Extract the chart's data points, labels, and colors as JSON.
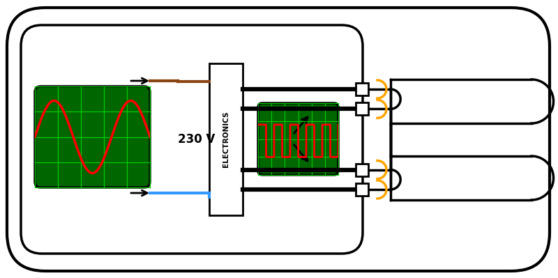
{
  "bg_color": "#ffffff",
  "line_color": "#000000",
  "green_fill": "#006600",
  "grid_color": "#00cc00",
  "red_wave": "#ff0000",
  "brown_wire": "#8B4513",
  "blue_wire": "#3399ff",
  "orange_wire": "#FFA500",
  "voltage_label": "230 V",
  "electronics_label": "ELECTRONICS"
}
